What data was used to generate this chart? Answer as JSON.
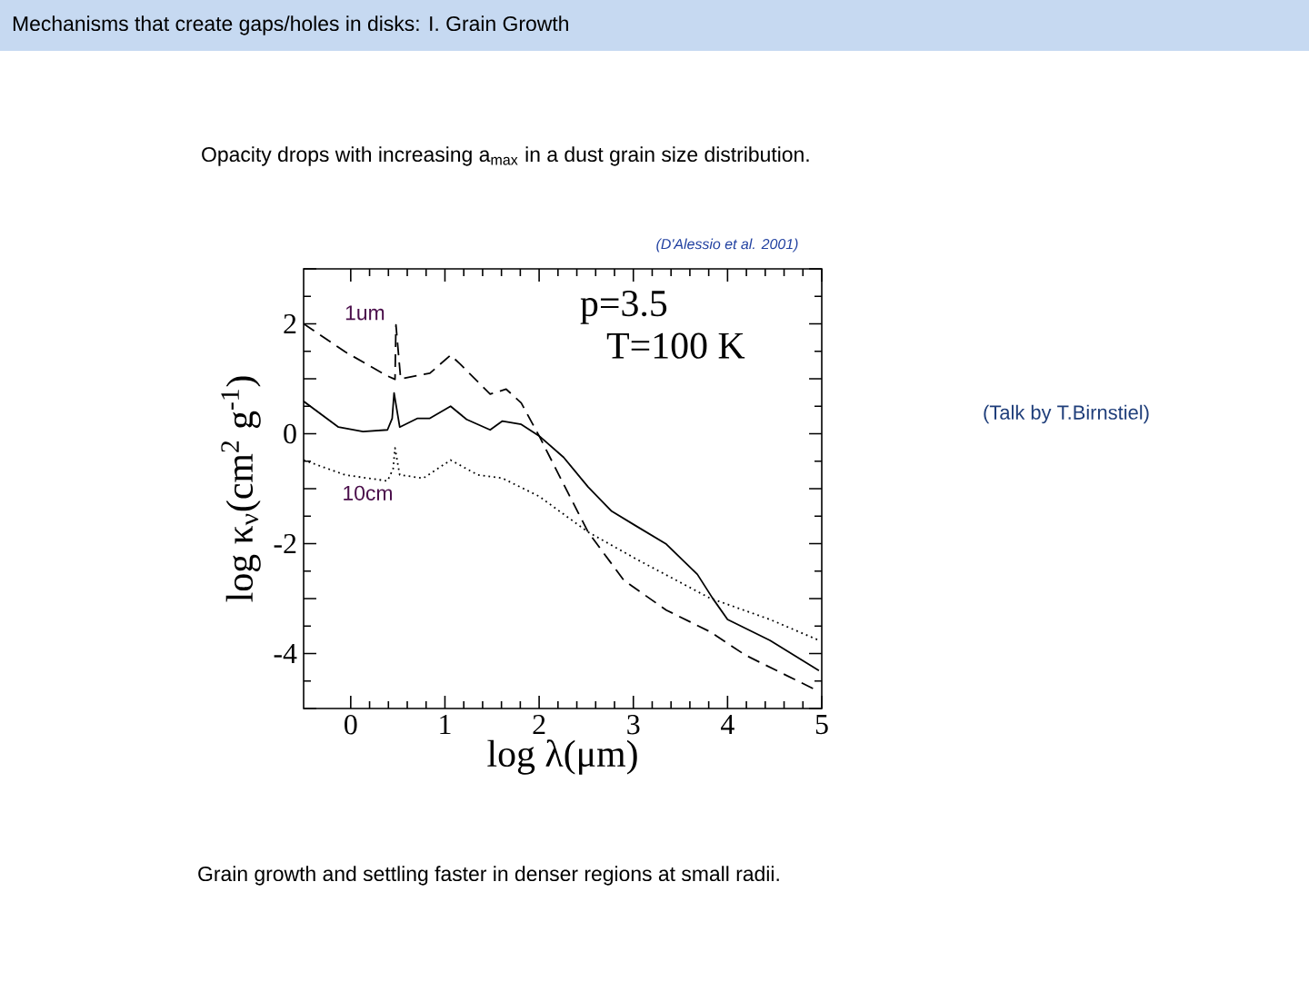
{
  "chart_data": {
    "type": "line",
    "title": "Mechanisms that create gaps/holes in disks:  I.  Grain Growth",
    "subtitle": "Opacity drops with  increasing  a$_{max}$ in a   dust grain size distribution.",
    "xlabel": "log λ(μm)",
    "ylabel": "log κ$_{ν}$(cm$^{2}$ g$^{-1}$)",
    "xlim": [
      -0.5,
      5
    ],
    "ylim": [
      -5,
      3
    ],
    "xticks": [
      0,
      1,
      2,
      3,
      4,
      5
    ],
    "yticks": [
      {
        "value": -5,
        "label": null
      },
      -4,
      {
        "value": -3,
        "label": null
      },
      -2,
      {
        "value": -1,
        "label": null
      },
      0,
      {
        "value": 1,
        "label": null
      },
      2,
      {
        "value": 3,
        "label": null
      }
    ],
    "series": [
      {
        "color": "#000000",
        "line_style": "dashed",
        "x": [
          -0.5,
          -0.06,
          0.39,
          0.47,
          0.48,
          0.53,
          0.84,
          1.06,
          1.16,
          1.48,
          1.65,
          1.81,
          2.0,
          2.26,
          2.52,
          2.9,
          3.35,
          3.81,
          4.19,
          4.97
        ],
        "values": [
          2.0,
          1.49,
          1.05,
          0.99,
          1.98,
          1.0,
          1.1,
          1.43,
          1.27,
          0.72,
          0.81,
          0.56,
          -0.04,
          -0.92,
          -1.79,
          -2.67,
          -3.21,
          -3.6,
          -4.03,
          -4.69
        ]
      },
      {
        "color": "#000000",
        "line_style": "solid",
        "x": [
          -0.5,
          -0.13,
          0.13,
          0.39,
          0.44,
          0.46,
          0.52,
          0.71,
          0.84,
          1.06,
          1.23,
          1.48,
          1.61,
          1.81,
          2.0,
          2.26,
          2.52,
          2.77,
          3.03,
          3.35,
          3.68,
          3.84,
          4.0,
          4.45,
          4.97
        ],
        "values": [
          0.59,
          0.12,
          0.04,
          0.07,
          0.28,
          0.74,
          0.12,
          0.28,
          0.28,
          0.5,
          0.26,
          0.07,
          0.23,
          0.17,
          -0.04,
          -0.43,
          -0.97,
          -1.41,
          -1.68,
          -2.01,
          -2.56,
          -2.99,
          -3.38,
          -3.76,
          -4.31
        ]
      },
      {
        "color": "#000000",
        "line_style": "dotted",
        "x": [
          -0.5,
          -0.06,
          0.39,
          0.45,
          0.47,
          0.52,
          0.77,
          1.06,
          1.35,
          1.61,
          2.0,
          2.52,
          3.03,
          3.81,
          4.45,
          4.97
        ],
        "values": [
          -0.48,
          -0.75,
          -0.86,
          -0.64,
          -0.26,
          -0.75,
          -0.81,
          -0.48,
          -0.75,
          -0.81,
          -1.14,
          -1.79,
          -2.28,
          -2.99,
          -3.38,
          -3.76
        ]
      }
    ],
    "annotations": [
      "(D'Alessio et al. 2001)",
      "p=3.5",
      "T=100  K",
      "1um",
      "10cm",
      "(Talk by T.Birnstiel)",
      "Grain growth and settling faster in denser regions at small radii."
    ]
  }
}
